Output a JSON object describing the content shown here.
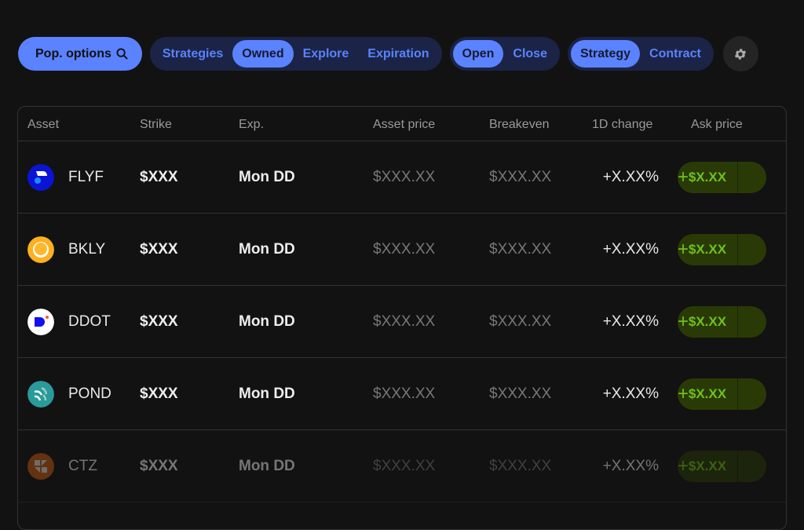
{
  "toolbar": {
    "pop_options": "Pop. options",
    "view_tabs": [
      "Strategies",
      "Owned",
      "Explore",
      "Expiration"
    ],
    "view_active": "Owned",
    "position_tabs": [
      "Open",
      "Close"
    ],
    "position_active": "Open",
    "type_tabs": [
      "Strategy",
      "Contract"
    ],
    "type_active": "Strategy"
  },
  "colors": {
    "accent": "#5b82ff",
    "ask_green": "#6fc21a"
  },
  "table": {
    "headers": [
      "Asset",
      "Strike",
      "Exp.",
      "Asset price",
      "Breakeven",
      "1D change",
      "Ask price"
    ],
    "rows": [
      {
        "symbol": "FLYF",
        "strike": "$XXX",
        "exp": "Mon DD",
        "asset_price": "$XXX.XX",
        "breakeven": "$XXX.XX",
        "change": "+X.XX%",
        "ask": "$X.XX",
        "plus": "+"
      },
      {
        "symbol": "BKLY",
        "strike": "$XXX",
        "exp": "Mon DD",
        "asset_price": "$XXX.XX",
        "breakeven": "$XXX.XX",
        "change": "+X.XX%",
        "ask": "$X.XX",
        "plus": "+"
      },
      {
        "symbol": "DDOT",
        "strike": "$XXX",
        "exp": "Mon DD",
        "asset_price": "$XXX.XX",
        "breakeven": "$XXX.XX",
        "change": "+X.XX%",
        "ask": "$X.XX",
        "plus": "+"
      },
      {
        "symbol": "POND",
        "strike": "$XXX",
        "exp": "Mon DD",
        "asset_price": "$XXX.XX",
        "breakeven": "$XXX.XX",
        "change": "+X.XX%",
        "ask": "$X.XX",
        "plus": "+"
      },
      {
        "symbol": "CTZ",
        "strike": "$XXX",
        "exp": "Mon DD",
        "asset_price": "$XXX.XX",
        "breakeven": "$XXX.XX",
        "change": "+X.XX%",
        "ask": "$X.XX",
        "plus": "+"
      }
    ]
  }
}
